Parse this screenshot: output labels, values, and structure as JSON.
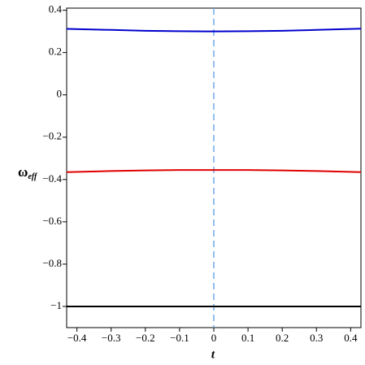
{
  "chart_data": {
    "type": "line",
    "xlabel": "t",
    "ylabel": {
      "main": "ω",
      "sub": "eff"
    },
    "x": [
      -0.43,
      -0.3,
      -0.2,
      -0.1,
      0,
      0.1,
      0.2,
      0.3,
      0.43
    ],
    "series": [
      {
        "color": "#0000cc",
        "values": [
          0.312,
          0.307,
          0.303,
          0.301,
          0.3,
          0.301,
          0.303,
          0.307,
          0.313
        ]
      },
      {
        "color": "#e00000",
        "values": [
          -0.365,
          -0.36,
          -0.357,
          -0.355,
          -0.355,
          -0.355,
          -0.357,
          -0.36,
          -0.365
        ]
      },
      {
        "color": "#000000",
        "values": [
          -1,
          -1,
          -1,
          -1,
          -1,
          -1,
          -1,
          -1,
          -1
        ]
      }
    ],
    "vline": {
      "x": 0,
      "color": "#6fa8e8"
    },
    "xlim": [
      -0.43,
      0.43
    ],
    "ylim": [
      -1.1,
      0.41
    ],
    "xticks": [
      {
        "value": -0.4,
        "label": "−0.4"
      },
      {
        "value": -0.3,
        "label": "−0.3"
      },
      {
        "value": -0.2,
        "label": "−0.2"
      },
      {
        "value": -0.1,
        "label": "−0.1"
      },
      0,
      0.1,
      0.2,
      0.3,
      0.4
    ],
    "yticks": [
      {
        "value": -1,
        "label": "−1"
      },
      {
        "value": -0.8,
        "label": "−0.8"
      },
      {
        "value": -0.6,
        "label": "−0.6"
      },
      {
        "value": -0.4,
        "label": "−0.4"
      },
      {
        "value": -0.2,
        "label": "−0.2"
      },
      0,
      0.2,
      0.4
    ]
  }
}
